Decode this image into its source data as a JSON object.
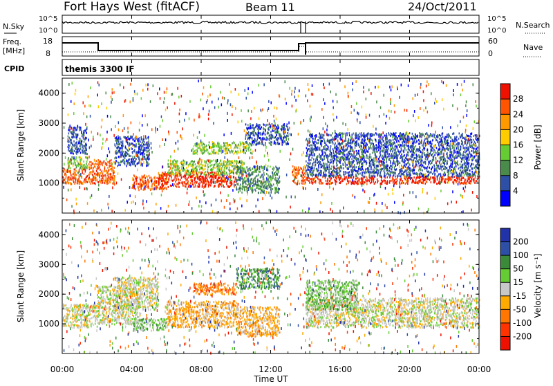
{
  "header": {
    "title": "Fort Hays West (fitACF)",
    "beam": "Beam 11",
    "date": "24/Oct/2011"
  },
  "panels": {
    "nsky": {
      "left_label": "N.Sky",
      "right_label": "N.Search",
      "ticks_left": [
        "10^5",
        "10^0"
      ],
      "ticks_right": [
        "10^5",
        "10^0"
      ]
    },
    "freq": {
      "left_label_1": "Freq.",
      "left_label_2": "[MHz]",
      "ticks_left": [
        "18",
        "8"
      ],
      "right_label": "Nave",
      "ticks_right": [
        "60",
        "0"
      ]
    },
    "cpid": {
      "label": "CPID",
      "text": "themis 3300 IF"
    }
  },
  "chart_data": [
    {
      "type": "heatmap",
      "name": "power",
      "ylabel": "Slant Range [km]",
      "yticks": [
        "1000",
        "2000",
        "3000",
        "4000"
      ],
      "ylim": [
        0,
        4500
      ],
      "xlim": [
        0,
        24
      ],
      "colorbar": {
        "label": "Power [dB]",
        "ticks": [
          "4",
          "8",
          "12",
          "16",
          "20",
          "24",
          "28"
        ],
        "colors": [
          "#0000ff",
          "#2d4fa6",
          "#4a8a4a",
          "#66cc33",
          "#ffcc00",
          "#ff9900",
          "#ff5500",
          "#ee1100"
        ]
      },
      "bands": [
        {
          "t": [
            0.0,
            1.5
          ],
          "r": [
            1000,
            1500
          ],
          "level": 6
        },
        {
          "t": [
            0.3,
            1.5
          ],
          "r": [
            1500,
            1900
          ],
          "level": 3
        },
        {
          "t": [
            0.3,
            1.4
          ],
          "r": [
            2000,
            2900
          ],
          "level": 1
        },
        {
          "t": [
            1.5,
            3.0
          ],
          "r": [
            1000,
            1800
          ],
          "level": 6
        },
        {
          "t": [
            3.0,
            5.0
          ],
          "r": [
            1600,
            2600
          ],
          "level": 1
        },
        {
          "t": [
            4.0,
            6.0
          ],
          "r": [
            800,
            1300
          ],
          "level": 6
        },
        {
          "t": [
            5.5,
            10.0
          ],
          "r": [
            900,
            1400
          ],
          "level": 7
        },
        {
          "t": [
            6.0,
            10.5
          ],
          "r": [
            1300,
            1800
          ],
          "level": 3
        },
        {
          "t": [
            7.5,
            11.0
          ],
          "r": [
            2000,
            2400
          ],
          "level": 3
        },
        {
          "t": [
            10.0,
            12.5
          ],
          "r": [
            700,
            1600
          ],
          "level": 2
        },
        {
          "t": [
            10.5,
            13.0
          ],
          "r": [
            2300,
            3000
          ],
          "level": 1
        },
        {
          "t": [
            13.2,
            14.0
          ],
          "r": [
            1000,
            1600
          ],
          "level": 6
        },
        {
          "t": [
            14.0,
            24.0
          ],
          "r": [
            1000,
            1250
          ],
          "level": 7
        },
        {
          "t": [
            14.0,
            24.0
          ],
          "r": [
            1250,
            2700
          ],
          "level": 1
        }
      ]
    },
    {
      "type": "heatmap",
      "name": "velocity",
      "ylabel": "Slant Range [km]",
      "yticks": [
        "1000",
        "2000",
        "3000",
        "4000"
      ],
      "ylim": [
        0,
        4500
      ],
      "xlim": [
        0,
        24
      ],
      "xticks": [
        "00:00",
        "04:00",
        "08:00",
        "12:00",
        "16:00",
        "20:00",
        "00:00"
      ],
      "xlabel": "Time UT",
      "colorbar": {
        "label": "Velocity [m s⁻¹]",
        "ticks": [
          "200",
          "100",
          "50",
          "15",
          "-15",
          "-50",
          "-100",
          "-200"
        ],
        "colors": [
          "#2233aa",
          "#2d4fa6",
          "#3a8a3a",
          "#66cc33",
          "#c8c8c8",
          "#ffaa00",
          "#ff7700",
          "#ff3300",
          "#ee1100"
        ]
      },
      "bands": [
        {
          "t": [
            0.0,
            2.0
          ],
          "r": [
            900,
            1700
          ],
          "level": 4
        },
        {
          "t": [
            2.0,
            4.5
          ],
          "r": [
            1000,
            2300
          ],
          "level": 4
        },
        {
          "t": [
            3.0,
            5.5
          ],
          "r": [
            1500,
            2600
          ],
          "level": 4
        },
        {
          "t": [
            4.0,
            6.0
          ],
          "r": [
            800,
            1200
          ],
          "level": 3
        },
        {
          "t": [
            6.0,
            10.0
          ],
          "r": [
            900,
            1800
          ],
          "level": 5
        },
        {
          "t": [
            7.5,
            10.0
          ],
          "r": [
            2000,
            2400
          ],
          "level": 6
        },
        {
          "t": [
            10.0,
            12.5
          ],
          "r": [
            600,
            1600
          ],
          "level": 5
        },
        {
          "t": [
            10.0,
            12.5
          ],
          "r": [
            2200,
            2900
          ],
          "level": 2
        },
        {
          "t": [
            14.0,
            24.0
          ],
          "r": [
            900,
            1900
          ],
          "level": 4
        },
        {
          "t": [
            14.0,
            17.0
          ],
          "r": [
            1500,
            2500
          ],
          "level": 3
        }
      ]
    }
  ]
}
